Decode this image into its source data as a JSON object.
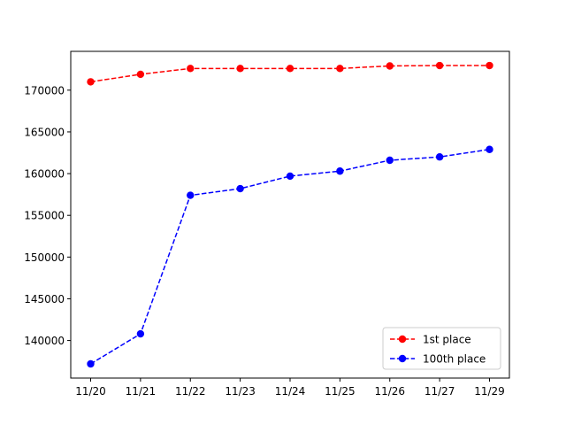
{
  "chart_data": {
    "type": "line",
    "categories": [
      "11/20",
      "11/21",
      "11/22",
      "11/23",
      "11/24",
      "11/25",
      "11/26",
      "11/27",
      "11/29"
    ],
    "series": [
      {
        "name": "1st place",
        "color": "#ff0000",
        "line_style": "dashed",
        "marker": "circle",
        "values": [
          171000,
          171900,
          172600,
          172600,
          172600,
          172600,
          172900,
          172950,
          172950
        ]
      },
      {
        "name": "100th place",
        "color": "#0000ff",
        "line_style": "dashed",
        "marker": "circle",
        "values": [
          137200,
          140800,
          157400,
          158200,
          159700,
          160300,
          161600,
          162000,
          162900
        ]
      }
    ],
    "y_ticks": [
      140000,
      145000,
      150000,
      155000,
      160000,
      165000,
      170000
    ],
    "ylim": [
      135500,
      174650
    ],
    "grid": false,
    "legend_position": "lower-right"
  }
}
